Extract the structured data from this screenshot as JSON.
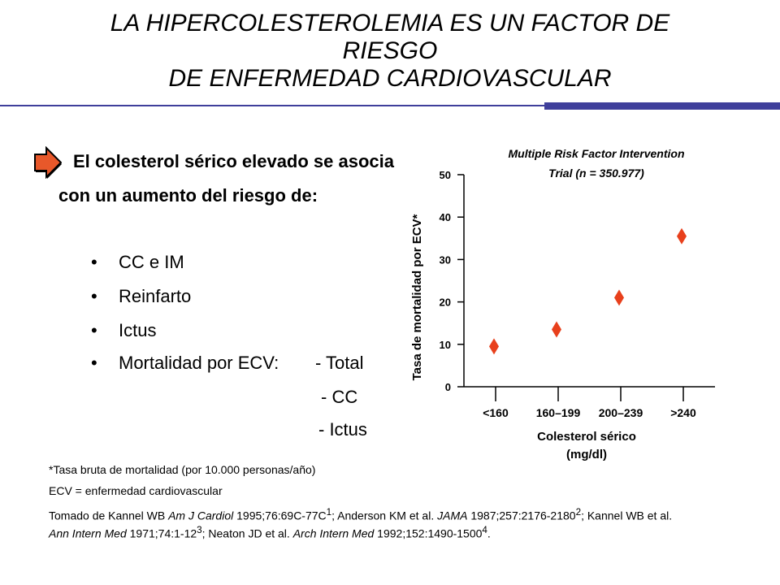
{
  "slide": {
    "title_lines": [
      "LA HIPERCOLESTEROLEMIA ES UN FACTOR DE",
      "RIESGO",
      "DE ENFERMEDAD CARDIOVASCULAR"
    ],
    "colors": {
      "rule": "#3f3f9b",
      "arrow": "#e8582a",
      "marker": "#e8401c"
    }
  },
  "content": {
    "lead_text": "El colesterol sérico elevado se asocia con un aumento del riesgo de:",
    "bullet_symbol": "•",
    "bullets": [
      "CC e IM",
      "Reinfarto",
      "Ictus",
      "Mortalidad por ECV:"
    ],
    "mortality_subitems": [
      "- Total",
      "- CC",
      "- Ictus"
    ],
    "icon": "arrow-right-icon"
  },
  "chart_data": {
    "type": "scatter",
    "title": "Multiple Risk Factor Intervention Trial (n = 350.977)",
    "title_lines": [
      "Multiple Risk Factor Intervention",
      "Trial (n = 350.977)"
    ],
    "ylabel": "Tasa de mortalidad por ECV*",
    "xlabel_lines": [
      "Colesterol sérico",
      "(mg/dl)"
    ],
    "categories": [
      "<160",
      "160–199",
      "200–239",
      ">240"
    ],
    "values": [
      9.5,
      13.5,
      21,
      35.5
    ],
    "ylim": [
      0,
      50
    ],
    "yticks": [
      0,
      10,
      20,
      30,
      40,
      50
    ],
    "marker": "diamond",
    "grid": false
  },
  "footnotes": {
    "note1": "*Tasa bruta de mortalidad (por 10.000 personas/año)",
    "note2": "ECV = enfermedad cardiovascular",
    "ref": {
      "p1": "Tomado de Kannel WB ",
      "j1": "Am J Cardiol",
      "p2": " 1995;76:69C-77C",
      "s1": "1",
      "p3": "; Anderson KM et al. ",
      "j2": "JAMA",
      "p4": " 1987;257:2176-2180",
      "s2": "2",
      "p5": "; Kannel WB et al.",
      "j3": "Ann Intern Med",
      "p6": " 1971;74:1-12",
      "s3": "3",
      "p7": "; Neaton JD et al. ",
      "j4": "Arch Intern Med",
      "p8": " 1992;152:1490-1500",
      "s4": "4",
      "p9": "."
    }
  }
}
